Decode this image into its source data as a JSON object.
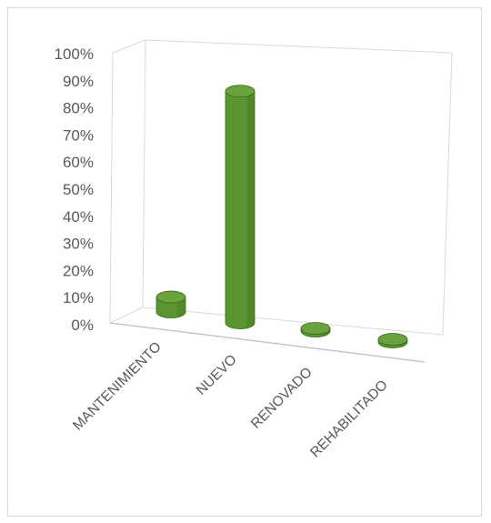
{
  "chart_data": {
    "type": "bar",
    "style": "3d-cylinder",
    "categories": [
      "MANTENIMIENTO",
      "NUEVO",
      "RENOVADO",
      "REHABILITADO"
    ],
    "values": [
      6,
      93,
      1,
      0
    ],
    "ylim": [
      0,
      100
    ],
    "y_ticks": [
      "0%",
      "10%",
      "20%",
      "30%",
      "40%",
      "50%",
      "60%",
      "70%",
      "80%",
      "90%",
      "100%"
    ],
    "title": "",
    "xlabel": "",
    "ylabel": "",
    "grid": false,
    "legend": "none",
    "colors": {
      "bar_side": "#5a9530",
      "bar_top": "#6aa33e",
      "bar_edge": "#3b6b1c",
      "axis": "#bfbfbf",
      "text": "#595959"
    }
  }
}
